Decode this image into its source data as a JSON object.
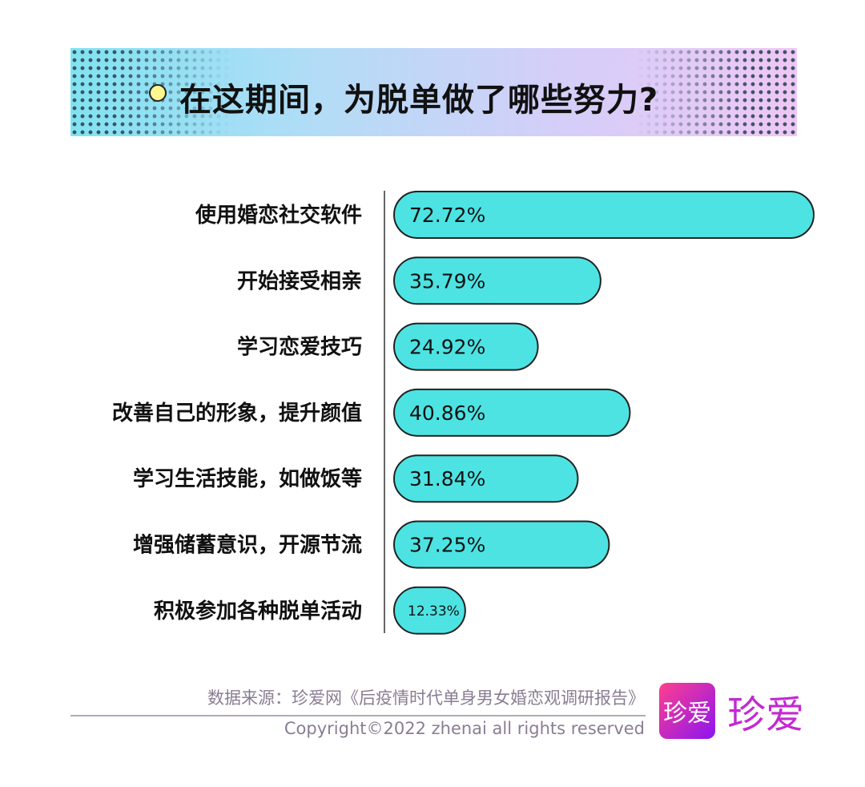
{
  "header": {
    "title": "在这期间，为脱单做了哪些努力?"
  },
  "chart_data": {
    "type": "bar",
    "orientation": "horizontal",
    "categories": [
      "使用婚恋社交软件",
      "开始接受相亲",
      "学习恋爱技巧",
      "改善自己的形象，提升颜值",
      "学习生活技能，如做饭等",
      "增强储蓄意识，开源节流",
      "积极参加各种脱单活动"
    ],
    "values": [
      72.72,
      35.79,
      24.92,
      40.86,
      31.84,
      37.25,
      12.33
    ],
    "data_labels": [
      "72.72%",
      "35.79%",
      "24.92%",
      "40.86%",
      "31.84%",
      "37.25%",
      "12.33%"
    ],
    "unit": "%",
    "bar_color": "#4de3e3",
    "grid": false
  },
  "footer": {
    "source": "数据来源：珍爱网《后疫情时代单身男女婚恋观调研报告》",
    "copyright": "Copyright©2022  zhenai  all rights reserved",
    "logo_text": "珍爱",
    "brand_color": "#c22ad0"
  }
}
